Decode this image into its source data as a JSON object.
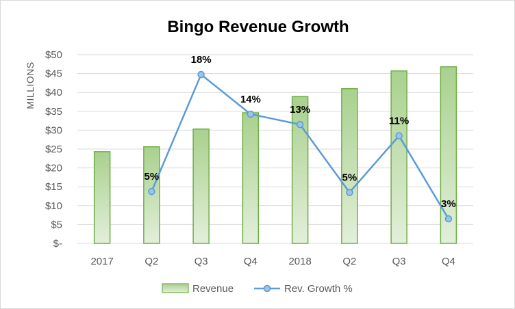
{
  "chart_data": {
    "type": "bar",
    "title": "Bingo Revenue Growth",
    "ylabel": "MILLIONS",
    "xlabel": "",
    "categories": [
      "2017",
      "Q2",
      "Q3",
      "Q4",
      "2018",
      "Q2",
      "Q3",
      "Q4"
    ],
    "ylim": [
      0,
      50
    ],
    "yticks": [
      0,
      5,
      10,
      15,
      20,
      25,
      30,
      35,
      40,
      45,
      50
    ],
    "ytick_labels": [
      "$-",
      "$5",
      "$10",
      "$15",
      "$20",
      "$25",
      "$30",
      "$35",
      "$40",
      "$45",
      "$50"
    ],
    "grid": true,
    "legend_position": "bottom",
    "series": [
      {
        "name": "Revenue",
        "type": "bar",
        "axis": "primary",
        "values": [
          24.3,
          25.6,
          30.3,
          34.6,
          38.9,
          41.0,
          45.7,
          46.8
        ]
      },
      {
        "name": "Rev. Growth %",
        "type": "line",
        "axis": "secondary",
        "secondary_ylim": [
          0,
          20
        ],
        "values": [
          null,
          5.5,
          17.9,
          13.7,
          12.6,
          5.4,
          11.4,
          2.6
        ],
        "data_labels": [
          "",
          "5%",
          "18%",
          "14%",
          "13%",
          "5%",
          "11%",
          "3%"
        ]
      }
    ],
    "colors": {
      "bar_fill_top": "#a9d18e",
      "bar_fill_bottom": "#e2efda",
      "bar_stroke": "#70ad47",
      "line": "#5b9bd5",
      "marker_fill": "#9dc3e6"
    }
  }
}
